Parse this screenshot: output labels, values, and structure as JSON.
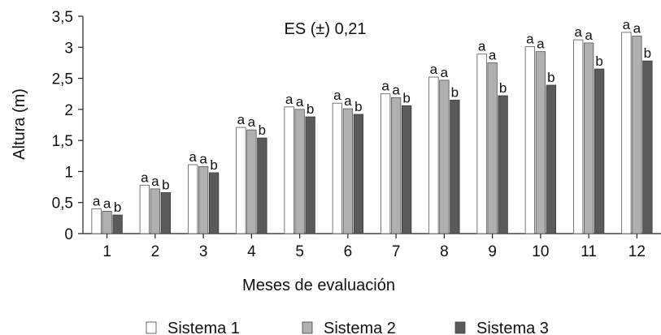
{
  "chart_data": {
    "type": "bar",
    "title": "",
    "annotation": "ES (±) 0,21",
    "xlabel": "Meses de evaluación",
    "ylabel": "Altura (m)",
    "ylim": [
      0,
      3.5
    ],
    "yticks": [
      "0",
      "0,5",
      "1",
      "1,5",
      "2",
      "2,5",
      "3",
      "3,5"
    ],
    "yticks_values": [
      0,
      0.5,
      1,
      1.5,
      2,
      2.5,
      3,
      3.5
    ],
    "categories": [
      "1",
      "2",
      "3",
      "4",
      "5",
      "6",
      "7",
      "8",
      "9",
      "10",
      "11",
      "12"
    ],
    "series": [
      {
        "name": "Sistema 1",
        "color": "#ffffff",
        "values": [
          0.4,
          0.78,
          1.11,
          1.71,
          2.04,
          2.1,
          2.25,
          2.52,
          2.89,
          3.01,
          3.12,
          3.24
        ],
        "labels": [
          "a",
          "a",
          "a",
          "a",
          "a",
          "a",
          "a",
          "a",
          "a",
          "a",
          "a",
          "a"
        ]
      },
      {
        "name": "Sistema 2",
        "color": "#b0b0b0",
        "values": [
          0.36,
          0.72,
          1.08,
          1.67,
          2.0,
          2.01,
          2.19,
          2.47,
          2.75,
          2.93,
          3.07,
          3.18
        ],
        "labels": [
          "a",
          "a",
          "a",
          "a",
          "a",
          "a",
          "a",
          "a",
          "a",
          "a",
          "a",
          "a"
        ]
      },
      {
        "name": "Sistema 3",
        "color": "#5a5a5a",
        "values": [
          0.3,
          0.66,
          0.98,
          1.54,
          1.88,
          1.92,
          2.06,
          2.15,
          2.22,
          2.39,
          2.65,
          2.78
        ],
        "labels": [
          "b",
          "b",
          "b",
          "b",
          "b",
          "b",
          "b",
          "b",
          "b",
          "b",
          "b",
          "b"
        ]
      }
    ],
    "legend_position": "bottom"
  }
}
